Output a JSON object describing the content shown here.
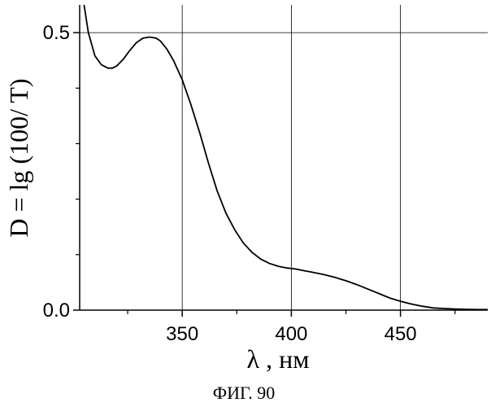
{
  "chart_data": {
    "type": "line",
    "xlabel": "λ , нм",
    "ylabel": "D = lg (100/ T)",
    "xlim": [
      303,
      490
    ],
    "ylim": [
      0.0,
      0.55
    ],
    "xticks": [
      350,
      400,
      450
    ],
    "yticks": [
      0.0,
      0.5
    ],
    "grid": true,
    "series": [
      {
        "x": [
          305,
          307,
          310,
          313,
          316,
          318,
          320,
          323,
          326,
          329,
          332,
          335,
          338,
          340,
          343,
          346,
          350,
          354,
          358,
          362,
          366,
          370,
          374,
          378,
          382,
          386,
          390,
          394,
          398,
          402,
          406,
          410,
          415,
          420,
          425,
          430,
          435,
          440,
          445,
          450,
          455,
          460,
          465,
          470,
          475,
          480,
          485,
          490
        ],
        "y": [
          0.55,
          0.5,
          0.458,
          0.442,
          0.436,
          0.436,
          0.44,
          0.452,
          0.468,
          0.482,
          0.49,
          0.492,
          0.49,
          0.485,
          0.47,
          0.45,
          0.415,
          0.37,
          0.32,
          0.265,
          0.215,
          0.175,
          0.145,
          0.121,
          0.104,
          0.092,
          0.084,
          0.079,
          0.076,
          0.074,
          0.071,
          0.068,
          0.064,
          0.059,
          0.053,
          0.046,
          0.038,
          0.03,
          0.022,
          0.016,
          0.011,
          0.007,
          0.004,
          0.003,
          0.002,
          0.0015,
          0.001,
          0.001
        ]
      }
    ]
  },
  "caption": "ФИГ. 90"
}
